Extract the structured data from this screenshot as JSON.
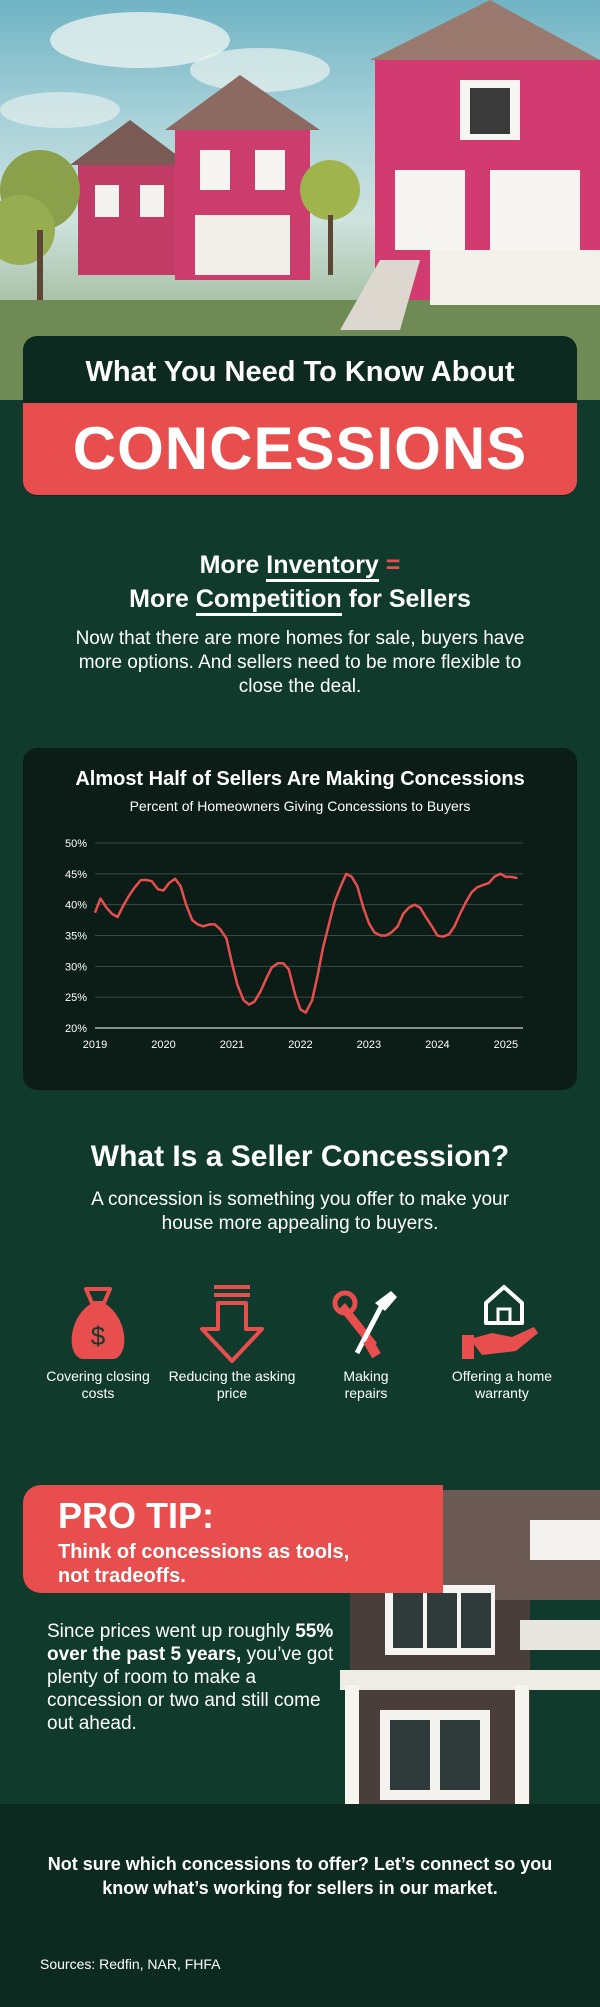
{
  "header": {
    "top_line": "What You Need To Know About",
    "main_word": "CONCESSIONS"
  },
  "inventory": {
    "line1_pre": "More ",
    "line1_em": "Inventory",
    "line1_sign": " =",
    "line2_pre": "More ",
    "line2_em": "Competition",
    "line2_post": " for Sellers",
    "paragraph": "Now that there are more homes for sale, buyers have more options. And sellers need to be more flexible to close the deal."
  },
  "chart_data": {
    "type": "line",
    "title": "Almost Half of Sellers Are Making Concessions",
    "subtitle": "Percent of Homeowners Giving Concessions to Buyers",
    "ylim": [
      20,
      50
    ],
    "y_ticks": [
      "20%",
      "25%",
      "30%",
      "35%",
      "40%",
      "45%",
      "50%"
    ],
    "x_ticks": [
      "2019",
      "2020",
      "2021",
      "2022",
      "2023",
      "2024",
      "2025"
    ],
    "x": [
      2019.0,
      2019.08,
      2019.17,
      2019.25,
      2019.33,
      2019.42,
      2019.5,
      2019.58,
      2019.67,
      2019.75,
      2019.83,
      2019.92,
      2020.0,
      2020.08,
      2020.17,
      2020.25,
      2020.33,
      2020.42,
      2020.5,
      2020.58,
      2020.67,
      2020.75,
      2020.83,
      2020.92,
      2021.0,
      2021.08,
      2021.17,
      2021.25,
      2021.33,
      2021.42,
      2021.5,
      2021.58,
      2021.67,
      2021.75,
      2021.83,
      2021.92,
      2022.0,
      2022.08,
      2022.17,
      2022.25,
      2022.33,
      2022.42,
      2022.5,
      2022.58,
      2022.67,
      2022.75,
      2022.83,
      2022.92,
      2023.0,
      2023.08,
      2023.17,
      2023.25,
      2023.33,
      2023.42,
      2023.5,
      2023.58,
      2023.67,
      2023.75,
      2023.83,
      2023.92,
      2024.0,
      2024.08,
      2024.17,
      2024.25,
      2024.33,
      2024.42,
      2024.5,
      2024.58,
      2024.67,
      2024.75,
      2024.83,
      2024.92,
      2025.0,
      2025.08,
      2025.17
    ],
    "values": [
      38.7,
      41.0,
      39.5,
      38.5,
      38.0,
      40.0,
      41.5,
      42.8,
      44.0,
      44.0,
      43.8,
      42.5,
      42.3,
      43.5,
      44.2,
      43.0,
      40.0,
      37.5,
      36.8,
      36.5,
      36.8,
      36.8,
      36.0,
      34.5,
      30.5,
      27.0,
      24.5,
      23.8,
      24.3,
      26.0,
      28.0,
      29.8,
      30.5,
      30.5,
      29.5,
      25.5,
      23.0,
      22.5,
      24.5,
      28.5,
      33.0,
      37.0,
      40.5,
      42.8,
      45.0,
      44.5,
      43.0,
      39.5,
      37.0,
      35.5,
      35.0,
      35.0,
      35.5,
      36.5,
      38.5,
      39.5,
      40.0,
      39.5,
      38.0,
      36.5,
      35.0,
      34.8,
      35.2,
      36.5,
      38.5,
      40.5,
      42.0,
      42.8,
      43.2,
      43.5,
      44.5,
      45.0,
      44.5,
      44.5,
      44.3
    ],
    "grid": true
  },
  "concession_section": {
    "title": "What Is a Seller Concession?",
    "paragraph": "A concession is something you offer to make your house more appealing to buyers.",
    "items": [
      {
        "label": "Covering closing costs",
        "icon": "money-bag-icon"
      },
      {
        "label": "Reducing the asking price",
        "icon": "down-arrow-icon"
      },
      {
        "label": "Making repairs",
        "icon": "tools-icon"
      },
      {
        "label": "Offering a home warranty",
        "icon": "home-hand-icon"
      }
    ]
  },
  "pro_tip": {
    "title": "PRO TIP:",
    "subtitle": "Think of concessions as tools, not tradeoffs.",
    "text_pre": "Since prices went up roughly ",
    "text_bold": "55% over the past 5 years,",
    "text_post": " you’ve got plenty of room to make a concession or two and still come out ahead."
  },
  "cta": {
    "text": "Not sure which concessions to offer? Let’s connect so you know what’s working for sellers in our market.",
    "sources": "Sources: Redfin, NAR, FHFA"
  },
  "colors": {
    "background": "#0f3a2c",
    "accent": "#e84e4e",
    "card": "#0b1d16"
  }
}
